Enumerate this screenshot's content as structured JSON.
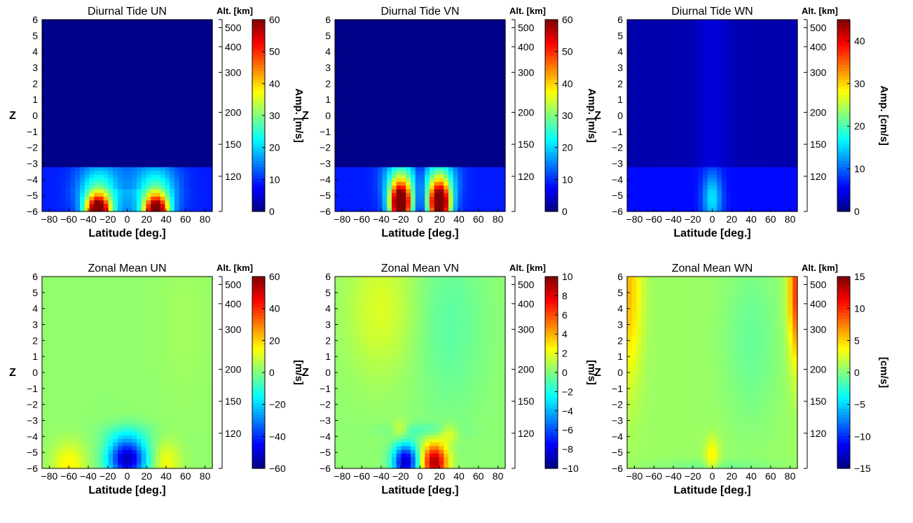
{
  "figure": {
    "panels": [
      {
        "title": "Diurnal Tide UN",
        "cb_label": "Amp. [m/s]",
        "cbar_ticks": [
          "0",
          "10",
          "20",
          "30",
          "40",
          "50",
          "60"
        ],
        "cbar_range": [
          0,
          60
        ],
        "field": "dt_un"
      },
      {
        "title": "Diurnal Tide VN",
        "cb_label": "Amp. [m/s]",
        "cbar_ticks": [
          "0",
          "10",
          "20",
          "30",
          "40",
          "50",
          "60"
        ],
        "cbar_range": [
          0,
          60
        ],
        "field": "dt_vn"
      },
      {
        "title": "Diurnal Tide WN",
        "cb_label": "Amp. [cm/s]",
        "cbar_ticks": [
          "0",
          "10",
          "20",
          "30",
          "40"
        ],
        "cbar_range": [
          0,
          45
        ],
        "field": "dt_wn"
      },
      {
        "title": "Zonal Mean UN",
        "cb_label": "[m/s]",
        "cbar_ticks": [
          "−60",
          "−40",
          "−20",
          "0",
          "20",
          "40",
          "60"
        ],
        "cbar_range": [
          -60,
          60
        ],
        "field": "zm_un"
      },
      {
        "title": "Zonal Mean VN",
        "cb_label": "[m/s]",
        "cbar_ticks": [
          "−10",
          "−8",
          "−6",
          "−4",
          "−2",
          "0",
          "2",
          "4",
          "6",
          "8",
          "10"
        ],
        "cbar_range": [
          -10,
          10
        ],
        "field": "zm_vn"
      },
      {
        "title": "Zonal Mean WN",
        "cb_label": "[cm/s]",
        "cbar_ticks": [
          "−15",
          "−10",
          "−5",
          "0",
          "5",
          "10",
          "15"
        ],
        "cbar_range": [
          -15,
          15
        ],
        "field": "zm_wn"
      }
    ],
    "xlabel": "Latitude [deg.]",
    "ylabel": "Z",
    "alt_title": "Alt. [km]",
    "x_ticks": [
      "−80",
      "−60",
      "−40",
      "−20",
      "0",
      "20",
      "40",
      "60",
      "80"
    ],
    "y_ticks": [
      "6",
      "5",
      "4",
      "3",
      "2",
      "1",
      "0",
      "−1",
      "−2",
      "−3",
      "−4",
      "−5",
      "−6"
    ],
    "alt_ticks": [
      {
        "label": "500",
        "z": 5.5
      },
      {
        "label": "400",
        "z": 4.3
      },
      {
        "label": "300",
        "z": 2.7
      },
      {
        "label": "200",
        "z": 0.2
      },
      {
        "label": "150",
        "z": -1.8
      },
      {
        "label": "120",
        "z": -3.8
      }
    ]
  },
  "chart_data": {
    "type": "heatmap",
    "x_range": [
      -87.5,
      87.5
    ],
    "y_range": [
      -6,
      6
    ],
    "colormap": "jet",
    "panels": [
      "dt_un",
      "dt_vn",
      "dt_wn",
      "zm_un",
      "zm_vn",
      "zm_wn"
    ],
    "features": {
      "dt_un": {
        "background": 0,
        "lower_band_z_top": -3.3,
        "lower_band_value": 12,
        "peaks": [
          {
            "lat": -30,
            "z": -6,
            "value": 60
          },
          {
            "lat": 30,
            "z": -6,
            "value": 58
          }
        ]
      },
      "dt_vn": {
        "background": 0,
        "lower_band_z_top": -3.3,
        "lower_band_value": 14,
        "peaks": [
          {
            "lat": -20,
            "z": -5.6,
            "value": 60
          },
          {
            "lat": 20,
            "z": -5.6,
            "value": 60
          }
        ]
      },
      "dt_wn": {
        "background": 2,
        "lower_band_z_top": -3.3,
        "lower_band_value": 6,
        "peaks": [
          {
            "lat": 0,
            "z": -5,
            "value": 15
          }
        ]
      },
      "zm_un": {
        "background": 2,
        "peaks": [
          {
            "lat": 0,
            "z": -5.4,
            "value": -55
          },
          {
            "lat": -60,
            "z": -5.8,
            "value": 15
          },
          {
            "lat": 40,
            "z": -5.6,
            "value": 12
          }
        ]
      },
      "zm_vn": {
        "background": 0.5,
        "peaks": [
          {
            "lat": -15,
            "z": -5.6,
            "value": -9
          },
          {
            "lat": 15,
            "z": -5.6,
            "value": 9
          }
        ]
      },
      "zm_wn": {
        "background": 0.5,
        "peaks": [
          {
            "lat": -85,
            "z": 5,
            "value": 6
          },
          {
            "lat": 85,
            "z": 5,
            "value": 8
          },
          {
            "lat": 0,
            "z": -5.2,
            "value": 4
          }
        ]
      }
    }
  }
}
